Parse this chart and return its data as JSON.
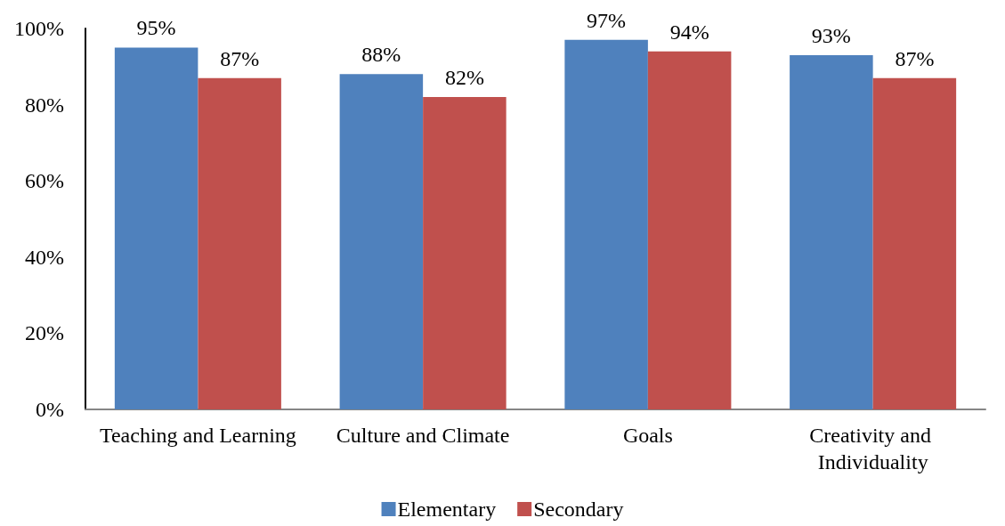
{
  "chart_data": {
    "type": "bar",
    "categories": [
      "Teaching and Learning",
      "Culture and Climate",
      "Goals",
      "Creativity and Individuality"
    ],
    "series": [
      {
        "name": "Elementary",
        "color": "#4f81bd",
        "values": [
          95,
          88,
          97,
          93
        ],
        "value_labels": [
          "95%",
          "88%",
          "97%",
          "93%"
        ]
      },
      {
        "name": "Secondary",
        "color": "#c0504d",
        "values": [
          87,
          82,
          94,
          87
        ],
        "value_labels": [
          "87%",
          "82%",
          "94%",
          "87%"
        ]
      }
    ],
    "ylim": [
      0,
      100
    ],
    "yticks": [
      {
        "value": 0,
        "label": "0%"
      },
      {
        "value": 20,
        "label": "20%"
      },
      {
        "value": 40,
        "label": "40%"
      },
      {
        "value": 60,
        "label": "60%"
      },
      {
        "value": 80,
        "label": "80%"
      },
      {
        "value": 100,
        "label": "100%"
      }
    ],
    "legend": "bottom"
  }
}
